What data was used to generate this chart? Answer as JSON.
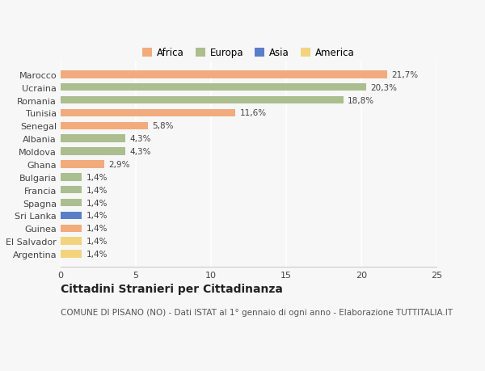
{
  "countries": [
    "Marocco",
    "Ucraina",
    "Romania",
    "Tunisia",
    "Senegal",
    "Albania",
    "Moldova",
    "Ghana",
    "Bulgaria",
    "Francia",
    "Spagna",
    "Sri Lanka",
    "Guinea",
    "El Salvador",
    "Argentina"
  ],
  "values": [
    21.7,
    20.3,
    18.8,
    11.6,
    5.8,
    4.3,
    4.3,
    2.9,
    1.4,
    1.4,
    1.4,
    1.4,
    1.4,
    1.4,
    1.4
  ],
  "labels": [
    "21,7%",
    "20,3%",
    "18,8%",
    "11,6%",
    "5,8%",
    "4,3%",
    "4,3%",
    "2,9%",
    "1,4%",
    "1,4%",
    "1,4%",
    "1,4%",
    "1,4%",
    "1,4%",
    "1,4%"
  ],
  "continents": [
    "Africa",
    "Europa",
    "Europa",
    "Africa",
    "Africa",
    "Europa",
    "Europa",
    "Africa",
    "Europa",
    "Europa",
    "Europa",
    "Asia",
    "Africa",
    "America",
    "America"
  ],
  "colors": {
    "Africa": "#F2AB7C",
    "Europa": "#ABBE8F",
    "Asia": "#5B7EC9",
    "America": "#F2D47E"
  },
  "legend_labels": [
    "Africa",
    "Europa",
    "Asia",
    "America"
  ],
  "legend_colors": [
    "#F2AB7C",
    "#ABBE8F",
    "#5B7EC9",
    "#F2D47E"
  ],
  "title": "Cittadini Stranieri per Cittadinanza",
  "subtitle": "COMUNE DI PISANO (NO) - Dati ISTAT al 1° gennaio di ogni anno - Elaborazione TUTTITALIA.IT",
  "xlim": [
    0,
    25
  ],
  "xticks": [
    0,
    5,
    10,
    15,
    20,
    25
  ],
  "background_color": "#f7f7f7",
  "bar_height": 0.6,
  "grid_color": "#ffffff",
  "label_fontsize": 7.5,
  "title_fontsize": 10,
  "subtitle_fontsize": 7.5,
  "tick_fontsize": 8,
  "legend_fontsize": 8.5
}
